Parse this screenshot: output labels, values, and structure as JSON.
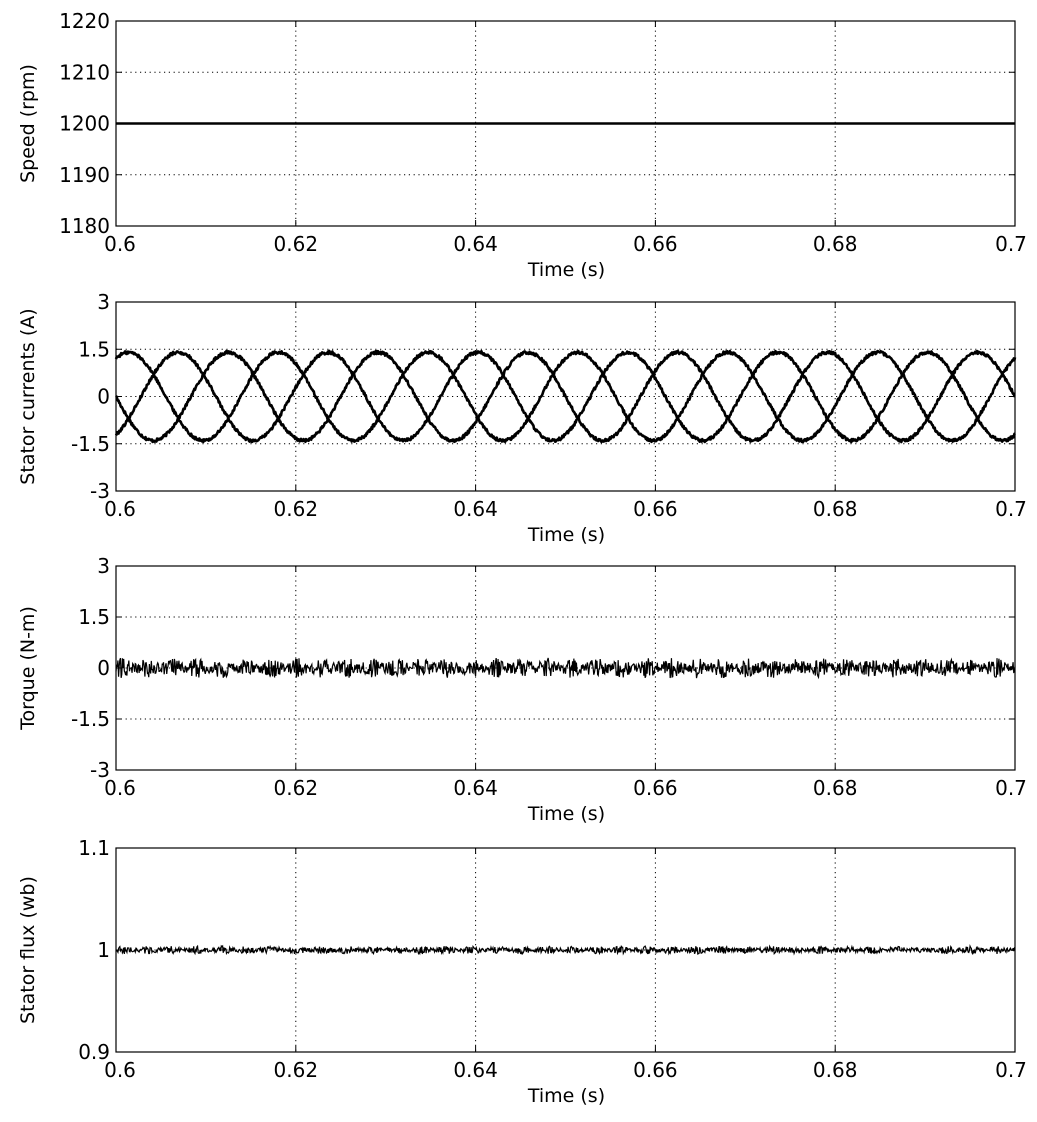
{
  "chart_data": [
    {
      "type": "line",
      "xlabel": "Time (s)",
      "ylabel": "Speed (rpm)",
      "xlim": [
        0.6,
        0.7
      ],
      "ylim": [
        1180,
        1220
      ],
      "xticks": [
        "0.6",
        "0.62",
        "0.64",
        "0.66",
        "0.68",
        "0.7"
      ],
      "yticks": [
        "1180",
        "1190",
        "1200",
        "1210",
        "1220"
      ],
      "grid": true,
      "series": [
        {
          "kind": "constant",
          "x": [
            0.6,
            0.7
          ],
          "y": [
            1200,
            1200
          ]
        }
      ]
    },
    {
      "type": "line",
      "xlabel": "Time (s)",
      "ylabel": "Stator currents (A)",
      "xlim": [
        0.6,
        0.7
      ],
      "ylim": [
        -3,
        3
      ],
      "xticks": [
        "0.6",
        "0.62",
        "0.64",
        "0.66",
        "0.68",
        "0.7"
      ],
      "yticks": [
        "-3",
        "-1.5",
        "0",
        "1.5",
        "3"
      ],
      "grid": true,
      "series": [
        {
          "kind": "sine",
          "amplitude": 1.4,
          "frequency_hz": 60,
          "phase_deg": 180
        },
        {
          "kind": "sine",
          "amplitude": 1.4,
          "frequency_hz": 60,
          "phase_deg": 60
        },
        {
          "kind": "sine",
          "amplitude": 1.4,
          "frequency_hz": 60,
          "phase_deg": -60
        }
      ]
    },
    {
      "type": "line",
      "xlabel": "Time (s)",
      "ylabel": "Torque (N-m)",
      "xlim": [
        0.6,
        0.7
      ],
      "ylim": [
        -3,
        3
      ],
      "xticks": [
        "0.6",
        "0.62",
        "0.64",
        "0.66",
        "0.68",
        "0.7"
      ],
      "yticks": [
        "-3",
        "-1.5",
        "0",
        "1.5",
        "3"
      ],
      "grid": true,
      "series": [
        {
          "kind": "ripple",
          "mean": 0,
          "ripple": 0.3
        }
      ]
    },
    {
      "type": "line",
      "xlabel": "Time (s)",
      "ylabel": "Stator flux (wb)",
      "xlim": [
        0.6,
        0.7
      ],
      "ylim": [
        0.9,
        1.1
      ],
      "xticks": [
        "0.6",
        "0.62",
        "0.64",
        "0.66",
        "0.68",
        "0.7"
      ],
      "yticks": [
        "0.9",
        "1",
        "1.1"
      ],
      "grid": true,
      "series": [
        {
          "kind": "ripple",
          "mean": 1,
          "ripple": 0.004
        }
      ]
    }
  ]
}
